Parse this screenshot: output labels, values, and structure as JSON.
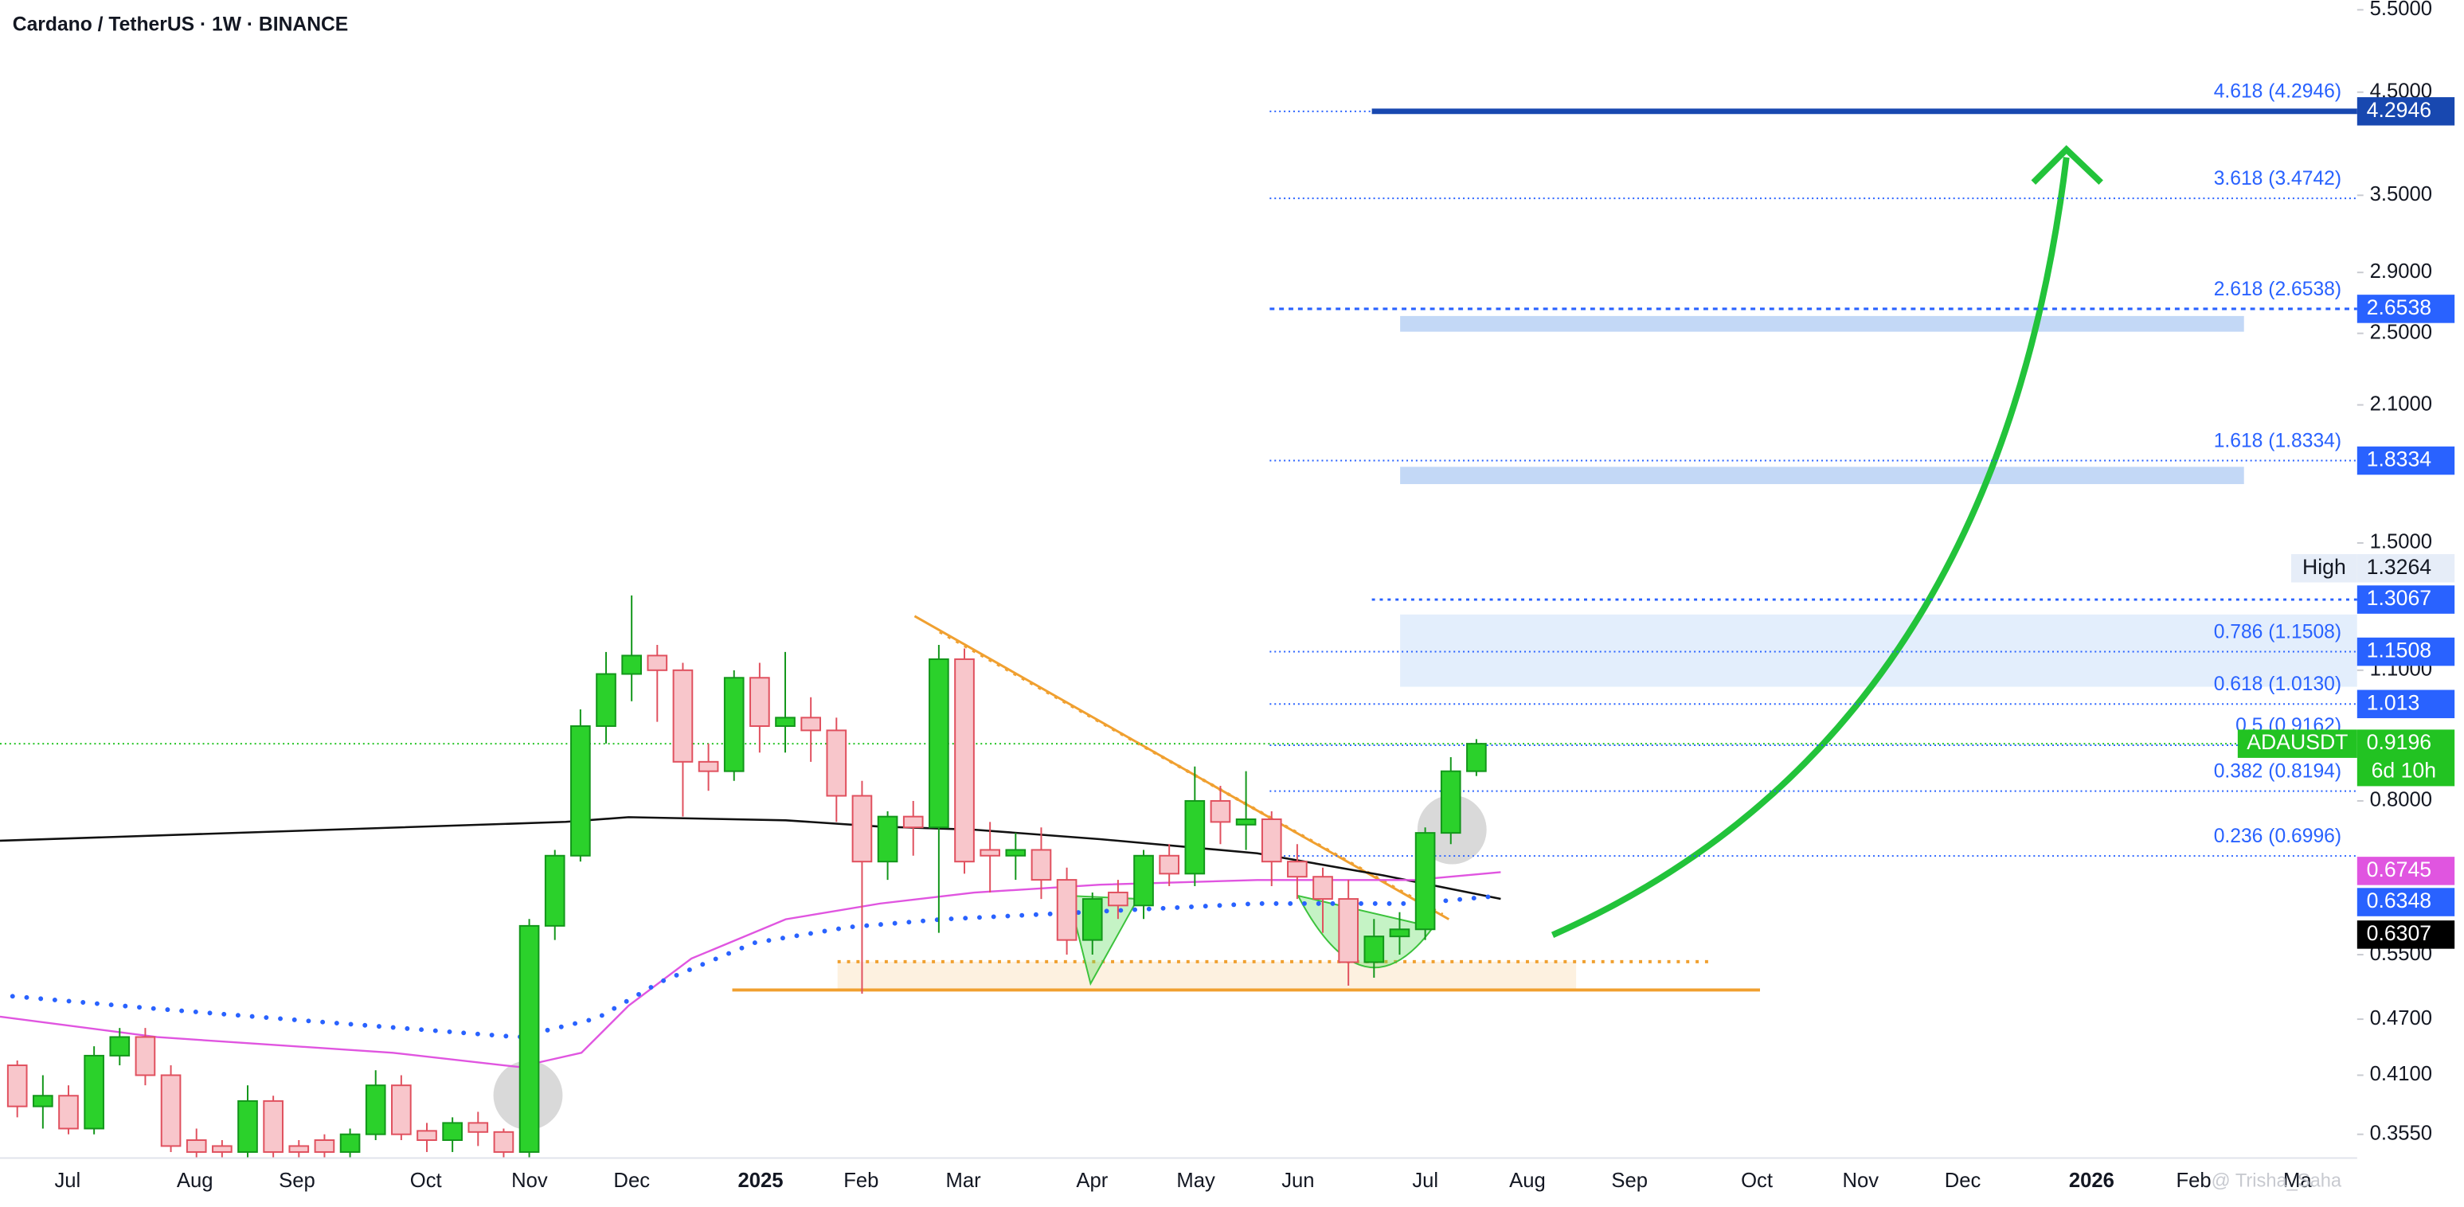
{
  "chart_data": {
    "type": "candlestick",
    "title": "Cardano / TetherUS · 1W · BINANCE",
    "log_scale": true,
    "ylim": [
      0.3376,
      5.63
    ],
    "yticks": [
      {
        "value": 5.5,
        "label": "5.5000"
      },
      {
        "value": 4.5,
        "label": "4.5000"
      },
      {
        "value": 3.5,
        "label": "3.5000"
      },
      {
        "value": 2.9,
        "label": "2.9000"
      },
      {
        "value": 2.5,
        "label": "2.5000"
      },
      {
        "value": 2.1,
        "label": "2.1000"
      },
      {
        "value": 1.5,
        "label": "1.5000"
      },
      {
        "value": 1.1,
        "label": "1.1000"
      },
      {
        "value": 0.8,
        "label": "0.8000"
      },
      {
        "value": 0.55,
        "label": "0.5500"
      },
      {
        "value": 0.47,
        "label": "0.4700"
      },
      {
        "value": 0.41,
        "label": "0.4100"
      },
      {
        "value": 0.355,
        "label": "0.3550"
      }
    ],
    "x_labels": [
      "Jul",
      "Aug",
      "Sep",
      "Oct",
      "Nov",
      "Dec",
      "2025",
      "Feb",
      "Mar",
      "Apr",
      "May",
      "Jun",
      "Jul",
      "Aug",
      "Sep",
      "Oct",
      "Nov",
      "Dec",
      "2026",
      "Feb",
      "Ma"
    ],
    "up_color": "#2bd12b",
    "down_color": "#f8c6cb",
    "candles": {
      "open": [
        0.42,
        0.38,
        0.39,
        0.36,
        0.43,
        0.45,
        0.41,
        0.35,
        0.345,
        0.34,
        0.385,
        0.345,
        0.35,
        0.34,
        0.355,
        0.4,
        0.358,
        0.35,
        0.365,
        0.357,
        0.34,
        0.59,
        0.7,
        0.96,
        1.09,
        1.14,
        1.1,
        0.88,
        0.86,
        1.08,
        0.96,
        0.98,
        0.95,
        0.81,
        0.69,
        0.77,
        0.75,
        1.13,
        0.71,
        0.7,
        0.71,
        0.66,
        0.57,
        0.64,
        0.62,
        0.7,
        0.67,
        0.8,
        0.755,
        0.765,
        0.69,
        0.665,
        0.63,
        0.54,
        0.575,
        0.585,
        0.74,
        0.86
      ],
      "high": [
        0.425,
        0.41,
        0.4,
        0.44,
        0.46,
        0.46,
        0.42,
        0.36,
        0.35,
        0.4,
        0.39,
        0.35,
        0.355,
        0.36,
        0.415,
        0.41,
        0.365,
        0.37,
        0.375,
        0.36,
        0.6,
        0.71,
        1.0,
        1.15,
        1.32,
        1.17,
        1.12,
        0.92,
        1.1,
        1.12,
        1.15,
        1.03,
        0.98,
        0.84,
        0.78,
        0.8,
        1.17,
        1.16,
        0.76,
        0.74,
        0.75,
        0.68,
        0.64,
        0.66,
        0.71,
        0.72,
        0.87,
        0.83,
        0.86,
        0.78,
        0.72,
        0.68,
        0.66,
        0.6,
        0.61,
        0.75,
        0.89,
        0.93
      ],
      "low": [
        0.37,
        0.36,
        0.355,
        0.355,
        0.42,
        0.4,
        0.34,
        0.335,
        0.335,
        0.335,
        0.335,
        0.335,
        0.335,
        0.335,
        0.35,
        0.35,
        0.34,
        0.34,
        0.345,
        0.33,
        0.33,
        0.57,
        0.69,
        0.92,
        1.02,
        0.97,
        0.77,
        0.82,
        0.84,
        0.9,
        0.9,
        0.88,
        0.76,
        0.5,
        0.66,
        0.7,
        0.58,
        0.67,
        0.64,
        0.66,
        0.63,
        0.55,
        0.55,
        0.6,
        0.6,
        0.65,
        0.65,
        0.72,
        0.71,
        0.65,
        0.63,
        0.58,
        0.51,
        0.52,
        0.55,
        0.57,
        0.72,
        0.85
      ],
      "close": [
        0.38,
        0.39,
        0.36,
        0.43,
        0.45,
        0.41,
        0.345,
        0.34,
        0.34,
        0.385,
        0.34,
        0.34,
        0.34,
        0.355,
        0.4,
        0.355,
        0.35,
        0.365,
        0.357,
        0.34,
        0.59,
        0.7,
        0.96,
        1.09,
        1.14,
        1.1,
        0.88,
        0.86,
        1.08,
        0.96,
        0.98,
        0.95,
        0.81,
        0.69,
        0.77,
        0.75,
        1.13,
        0.69,
        0.7,
        0.71,
        0.66,
        0.57,
        0.63,
        0.62,
        0.7,
        0.67,
        0.8,
        0.76,
        0.765,
        0.69,
        0.665,
        0.63,
        0.54,
        0.575,
        0.585,
        0.74,
        0.86,
        0.9196
      ]
    },
    "fib_levels": [
      {
        "label": "4.618 (4.2946)",
        "value": 4.2946
      },
      {
        "label": "3.618 (3.4742)",
        "value": 3.4742
      },
      {
        "label": "2.618 (2.6538)",
        "value": 2.6538
      },
      {
        "label": "1.618 (1.8334)",
        "value": 1.8334
      },
      {
        "label": "0.786 (1.1508)",
        "value": 1.1508
      },
      {
        "label": "0.618 (1.0130)",
        "value": 1.013
      },
      {
        "label": "0.5 (0.9162)",
        "value": 0.9162
      },
      {
        "label": "0.382 (0.8194)",
        "value": 0.8194
      },
      {
        "label": "0.236 (0.6996)",
        "value": 0.6996
      }
    ],
    "price_tags": [
      {
        "value": 4.2946,
        "color": "#1848b0"
      },
      {
        "value": 2.6538,
        "color": "#2962ff"
      },
      {
        "value": 1.8334,
        "color": "#2962ff"
      },
      {
        "name": "High",
        "value": 1.3264,
        "color": "#e6edf8"
      },
      {
        "value": 1.3067,
        "color": "#2962ff"
      },
      {
        "value": 1.1508,
        "color": "#2962ff"
      },
      {
        "value": 1.013,
        "color": "#2962ff"
      },
      {
        "name": "ADAUSDT",
        "value": 0.9196,
        "color": "#22c322",
        "countdown": "6d 10h"
      },
      {
        "value": 0.6745,
        "color": "#e055e0"
      },
      {
        "value": 0.6348,
        "color": "#2962ff"
      },
      {
        "value": 0.6307,
        "color": "#000000"
      }
    ],
    "watermark": "@ Trisha_Saha"
  }
}
